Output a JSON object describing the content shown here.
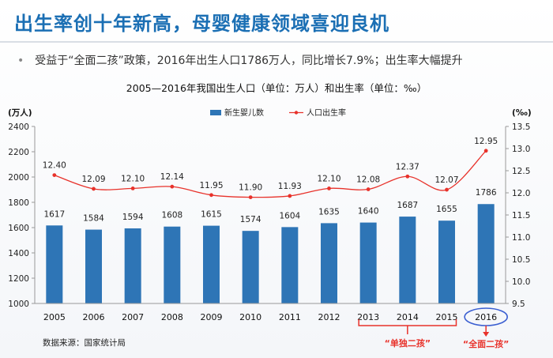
{
  "slide": {
    "title": "出生率创十年新高，母婴健康领域喜迎良机",
    "bullet": "受益于“全面二孩”政策，2016年出生人口1786万人，同比增长7.9%；出生率大幅提升",
    "source": "数据来源：国家统计局"
  },
  "colors": {
    "bar": "#2e75b6",
    "line": "#e8322b",
    "accent": "#e8322b",
    "circle": "#3b5fd1"
  },
  "chart_data": {
    "type": "bar+line",
    "title": "2005—2016年我国出生人口（单位：万人）和出生率（单位：‰）",
    "left_axis_label": "(万人)",
    "right_axis_label": "(‰)",
    "categories": [
      "2005",
      "2006",
      "2007",
      "2008",
      "2009",
      "2010",
      "2011",
      "2012",
      "2013",
      "2014",
      "2015",
      "2016"
    ],
    "series": [
      {
        "name": "新生婴儿数",
        "type": "bar",
        "axis": "left",
        "values": [
          1617,
          1584,
          1594,
          1608,
          1615,
          1574,
          1604,
          1635,
          1640,
          1687,
          1655,
          1786
        ]
      },
      {
        "name": "人口出生率",
        "type": "line",
        "axis": "right",
        "values": [
          12.4,
          12.09,
          12.1,
          12.14,
          11.95,
          11.9,
          11.93,
          12.1,
          12.08,
          12.37,
          12.07,
          12.95
        ]
      }
    ],
    "left_ylim": [
      1000,
      2400
    ],
    "left_ticks": [
      1000,
      1200,
      1400,
      1600,
      1800,
      2000,
      2200,
      2400
    ],
    "right_ylim": [
      9.5,
      13.5
    ],
    "right_ticks": [
      "9.5",
      "10.0",
      "10.5",
      "11.0",
      "11.5",
      "12.0",
      "12.5",
      "13.0",
      "13.5"
    ],
    "line_labels": [
      "12.40",
      "12.09",
      "12.10",
      "12.14",
      "11.95",
      "11.90",
      "11.93",
      "12.10",
      "12.08",
      "12.37",
      "12.07",
      "12.95"
    ],
    "legend_position": "top",
    "annotations": [
      {
        "text": "“单独二孩”",
        "from": "2013",
        "to": "2015"
      },
      {
        "text": "“全面二孩”",
        "at": "2016"
      }
    ]
  }
}
